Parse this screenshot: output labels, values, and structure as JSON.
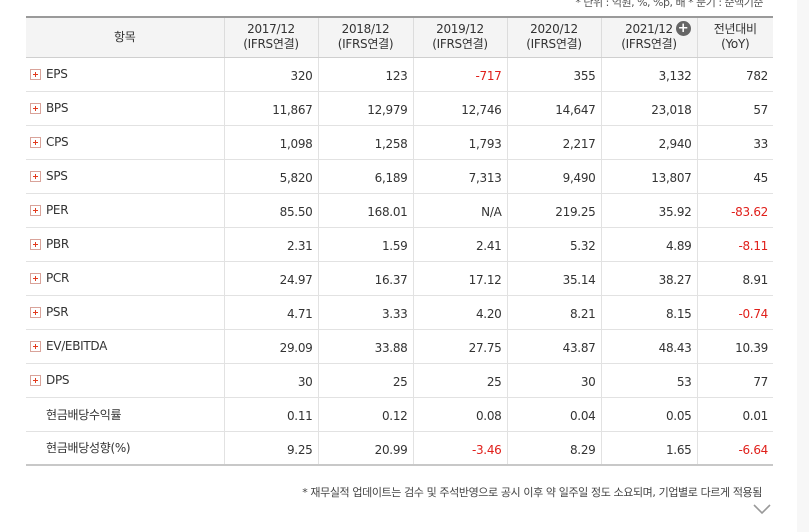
{
  "units_note": "* 단위 : 억원, %, %p, 배    * 분기 : 순액기준",
  "header": {
    "item_label": "항목",
    "columns": [
      {
        "year": "2017/12",
        "basis": "(IFRS연결)"
      },
      {
        "year": "2018/12",
        "basis": "(IFRS연결)"
      },
      {
        "year": "2019/12",
        "basis": "(IFRS연결)"
      },
      {
        "year": "2020/12",
        "basis": "(IFRS연결)"
      },
      {
        "year": "2021/12",
        "basis": "(IFRS연결)"
      }
    ],
    "yoy_line1": "전년대비",
    "yoy_line2": "(YoY)"
  },
  "rows": [
    {
      "name": "EPS",
      "expandable": true,
      "values": [
        "320",
        "123",
        "-717",
        "355",
        "3,132",
        "782"
      ]
    },
    {
      "name": "BPS",
      "expandable": true,
      "values": [
        "11,867",
        "12,979",
        "12,746",
        "14,647",
        "23,018",
        "57"
      ]
    },
    {
      "name": "CPS",
      "expandable": true,
      "values": [
        "1,098",
        "1,258",
        "1,793",
        "2,217",
        "2,940",
        "33"
      ]
    },
    {
      "name": "SPS",
      "expandable": true,
      "values": [
        "5,820",
        "6,189",
        "7,313",
        "9,490",
        "13,807",
        "45"
      ]
    },
    {
      "name": "PER",
      "expandable": true,
      "values": [
        "85.50",
        "168.01",
        "N/A",
        "219.25",
        "35.92",
        "-83.62"
      ]
    },
    {
      "name": "PBR",
      "expandable": true,
      "values": [
        "2.31",
        "1.59",
        "2.41",
        "5.32",
        "4.89",
        "-8.11"
      ]
    },
    {
      "name": "PCR",
      "expandable": true,
      "values": [
        "24.97",
        "16.37",
        "17.12",
        "35.14",
        "38.27",
        "8.91"
      ]
    },
    {
      "name": "PSR",
      "expandable": true,
      "values": [
        "4.71",
        "3.33",
        "4.20",
        "8.21",
        "8.15",
        "-0.74"
      ]
    },
    {
      "name": "EV/EBITDA",
      "expandable": true,
      "values": [
        "29.09",
        "33.88",
        "27.75",
        "43.87",
        "48.43",
        "10.39"
      ]
    },
    {
      "name": "DPS",
      "expandable": true,
      "values": [
        "30",
        "25",
        "25",
        "30",
        "53",
        "77"
      ]
    },
    {
      "name": "현금배당수익률",
      "expandable": false,
      "values": [
        "0.11",
        "0.12",
        "0.08",
        "0.04",
        "0.05",
        "0.01"
      ]
    },
    {
      "name": "현금배당성향(%)",
      "expandable": false,
      "values": [
        "9.25",
        "20.99",
        "-3.46",
        "8.29",
        "1.65",
        "-6.64"
      ]
    }
  ],
  "footnote": "* 재무실적 업데이트는 검수 및 주석반영으로 공시 이후 약 일주일 정도 소요되며, 기업별로 다르게 적용됨",
  "colors": {
    "negative": "#e0201b",
    "header_bg": "#f4f4f4"
  }
}
